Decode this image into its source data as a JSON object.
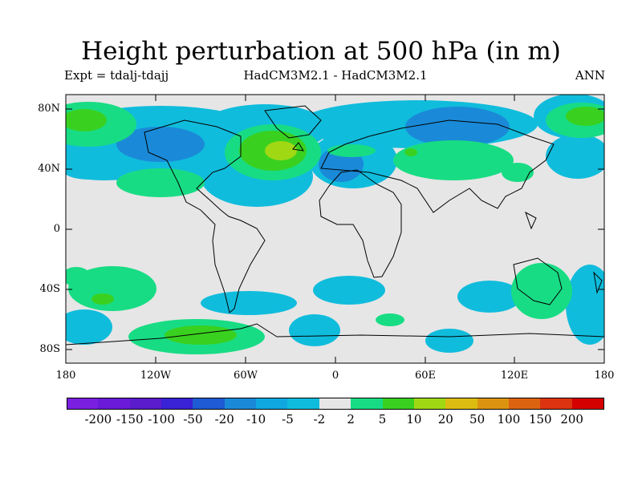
{
  "title": "Height perturbation at 500 hPa (in m)",
  "subtitle_left": "Expt = tdalj-tdajj",
  "subtitle_center": "HadCM3M2.1 - HadCM3M2.1",
  "subtitle_right": "ANN",
  "lat_labels": [
    "80N",
    "40N",
    "0",
    "40S",
    "80S"
  ],
  "lon_labels": [
    "180",
    "120W",
    "60W",
    "0",
    "60E",
    "120E",
    "180"
  ],
  "colorbar": {
    "labels": [
      "-200",
      "-150",
      "-100",
      "-50",
      "-20",
      "-10",
      "-5",
      "-2",
      "2",
      "5",
      "10",
      "20",
      "50",
      "100",
      "150",
      "200"
    ],
    "colors": [
      "#7a1fe0",
      "#6a1ad8",
      "#5a1ccc",
      "#3a22d6",
      "#1e5bd4",
      "#1a8ad8",
      "#10a8e0",
      "#10bcdc",
      "#e6e6e6",
      "#18dc84",
      "#3ad020",
      "#a0d814",
      "#dcbc10",
      "#dc9410",
      "#dc6410",
      "#dc3410",
      "#d40000"
    ]
  },
  "colors": {
    "background": "#e6e6e6",
    "coast": "#000000"
  }
}
